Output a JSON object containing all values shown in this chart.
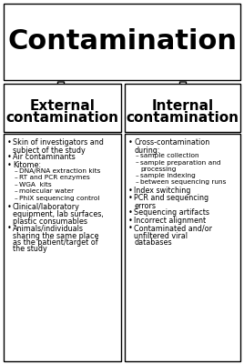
{
  "title": "Contamination",
  "title_fontsize": 22,
  "header_left": "External\ncontamination",
  "header_right": "Internal\ncontamination",
  "header_fontsize": 11,
  "left_items": [
    {
      "level": 0,
      "text": "Skin of investigators and\nsubject of the study"
    },
    {
      "level": 0,
      "text": "Air contaminants"
    },
    {
      "level": 0,
      "text": "Kitome:"
    },
    {
      "level": 1,
      "text": "DNA/RNA extraction kits"
    },
    {
      "level": 1,
      "text": "RT and PCR enzymes"
    },
    {
      "level": 1,
      "text": "WGA  kits"
    },
    {
      "level": 1,
      "text": "molecular water"
    },
    {
      "level": 1,
      "text": "PhiX sequencing control"
    },
    {
      "level": 0,
      "text": "Clinical/laboratory\nequipment, lab surfaces,\nplastic consumables"
    },
    {
      "level": 0,
      "text": "Animals/individuals\nsharing the same place\nas the patient/target of\nthe study"
    }
  ],
  "right_items": [
    {
      "level": 0,
      "text": "Cross-contamination\nduring:"
    },
    {
      "level": 1,
      "text": "sample collection"
    },
    {
      "level": 1,
      "text": "sample preparation and\nprocessing"
    },
    {
      "level": 1,
      "text": "sample indexing"
    },
    {
      "level": 1,
      "text": "between sequencing runs"
    },
    {
      "level": 0,
      "text": "Index switching"
    },
    {
      "level": 0,
      "text": "PCR and sequencing\nerrors"
    },
    {
      "level": 0,
      "text": "Sequencing artifacts"
    },
    {
      "level": 0,
      "text": "Incorrect alignment"
    },
    {
      "level": 0,
      "text": "Contaminated and/or\nunfiltered viral\ndatabases"
    }
  ],
  "body_fontsize": 5.8,
  "sub_fontsize": 5.3,
  "background_color": "#ffffff",
  "border_color": "#000000"
}
